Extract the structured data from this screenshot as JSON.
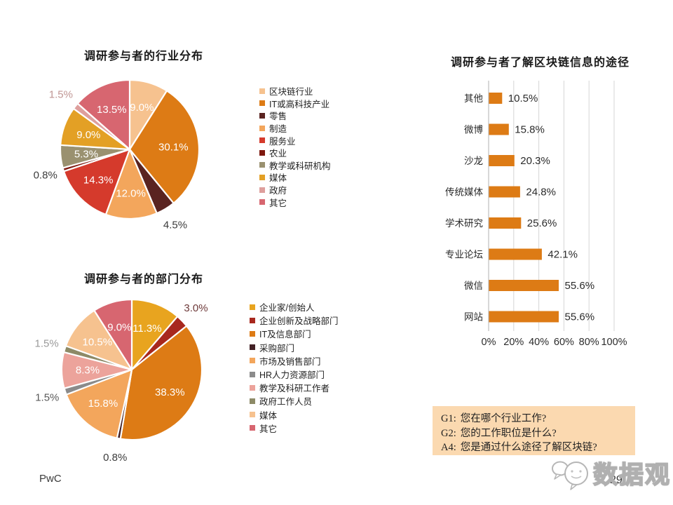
{
  "slide": {
    "footer": {
      "logo_text": "PwC",
      "page_number": "29",
      "watermark_text": "数据观"
    },
    "note_box": {
      "bg_color": "#FBD9B0",
      "lines": [
        {
          "label": "G1:",
          "text": "您在哪个行业工作?"
        },
        {
          "label": "G2:",
          "text": "您的工作职位是什么?"
        },
        {
          "label": "A4:",
          "text": "您是通过什么途径了解区块链?"
        }
      ]
    }
  },
  "chart_data": [
    {
      "type": "pie",
      "title": "调研参与者的行业分布",
      "legend_position": "right",
      "slices": [
        {
          "label": "区块链行业",
          "value": 9.0,
          "display": "9.0%",
          "color": "#F6C28F",
          "label_placement": "inside"
        },
        {
          "label": "IT或高科技产业",
          "value": 30.1,
          "display": "30.1%",
          "color": "#DD7B15",
          "label_placement": "inside"
        },
        {
          "label": "零售",
          "value": 4.5,
          "display": "4.5%",
          "color": "#5A2320",
          "label_placement": "outside",
          "label_color": "#3C3C3C"
        },
        {
          "label": "制造",
          "value": 12.0,
          "display": "12.0%",
          "color": "#F3A65C",
          "label_placement": "inside"
        },
        {
          "label": "服务业",
          "value": 14.3,
          "display": "14.3%",
          "color": "#D53A2C",
          "label_placement": "inside"
        },
        {
          "label": "农业",
          "value": 0.8,
          "display": "0.8%",
          "color": "#7E180E",
          "label_placement": "outside",
          "label_color": "#3C3C3C"
        },
        {
          "label": "教学或科研机构",
          "value": 5.3,
          "display": "5.3%",
          "color": "#9A9170",
          "label_placement": "inside"
        },
        {
          "label": "媒体",
          "value": 9.0,
          "display": "9.0%",
          "color": "#E3A025",
          "label_placement": "inside"
        },
        {
          "label": "政府",
          "value": 1.5,
          "display": "1.5%",
          "color": "#DE9F9D",
          "label_placement": "outside",
          "label_color": "#C09694"
        },
        {
          "label": "其它",
          "value": 13.5,
          "display": "13.5%",
          "color": "#D76670",
          "label_placement": "inside"
        }
      ]
    },
    {
      "type": "pie",
      "title": "调研参与者的部门分布",
      "legend_position": "right",
      "slices": [
        {
          "label": "企业家/创始人",
          "value": 11.3,
          "display": "11.3%",
          "color": "#E8A41F",
          "label_placement": "inside"
        },
        {
          "label": "企业创新及战略部门",
          "value": 3.0,
          "display": "3.0%",
          "color": "#A8281E",
          "label_placement": "outside",
          "label_color": "#6E3A3A"
        },
        {
          "label": "IT及信息部门",
          "value": 38.3,
          "display": "38.3%",
          "color": "#DD7B15",
          "label_placement": "inside"
        },
        {
          "label": "采购部门",
          "value": 0.8,
          "display": "0.8%",
          "color": "#432126",
          "label_placement": "outside",
          "label_color": "#3C3C3C"
        },
        {
          "label": "市场及销售部门",
          "value": 15.8,
          "display": "15.8%",
          "color": "#F3A65C",
          "label_placement": "inside"
        },
        {
          "label": "HR人力资源部门",
          "value": 1.5,
          "display": "1.5%",
          "color": "#8B8B8B",
          "label_placement": "outside",
          "label_color": "#5A5A5A"
        },
        {
          "label": "教学及科研工作者",
          "value": 8.3,
          "display": "8.3%",
          "color": "#ECA39B",
          "label_placement": "inside"
        },
        {
          "label": "政府工作人员",
          "value": 1.5,
          "display": "1.5%",
          "color": "#8D8A67",
          "label_placement": "outside",
          "label_color": "#9A9A9A"
        },
        {
          "label": "媒体",
          "value": 10.5,
          "display": "10.5%",
          "color": "#F6C28F",
          "label_placement": "inside"
        },
        {
          "label": "其它",
          "value": 9.0,
          "display": "9.0%",
          "color": "#D76670",
          "label_placement": "inside"
        }
      ]
    },
    {
      "type": "bar",
      "orientation": "horizontal",
      "title": "调研参与者了解区块链信息的途径",
      "categories": [
        "其他",
        "微博",
        "沙龙",
        "传统媒体",
        "学术研究",
        "专业论坛",
        "微信",
        "网站"
      ],
      "values": [
        10.5,
        15.8,
        20.3,
        24.8,
        25.6,
        42.1,
        55.6,
        55.6
      ],
      "value_labels": [
        "10.5%",
        "15.8%",
        "20.3%",
        "24.8%",
        "25.6%",
        "42.1%",
        "55.6%",
        "55.6%"
      ],
      "bar_color": "#DD7B15",
      "xticks": [
        "0%",
        "20%",
        "40%",
        "60%",
        "80%",
        "100%"
      ],
      "xlim": [
        0,
        100
      ],
      "grid": true,
      "legend": "none"
    }
  ]
}
